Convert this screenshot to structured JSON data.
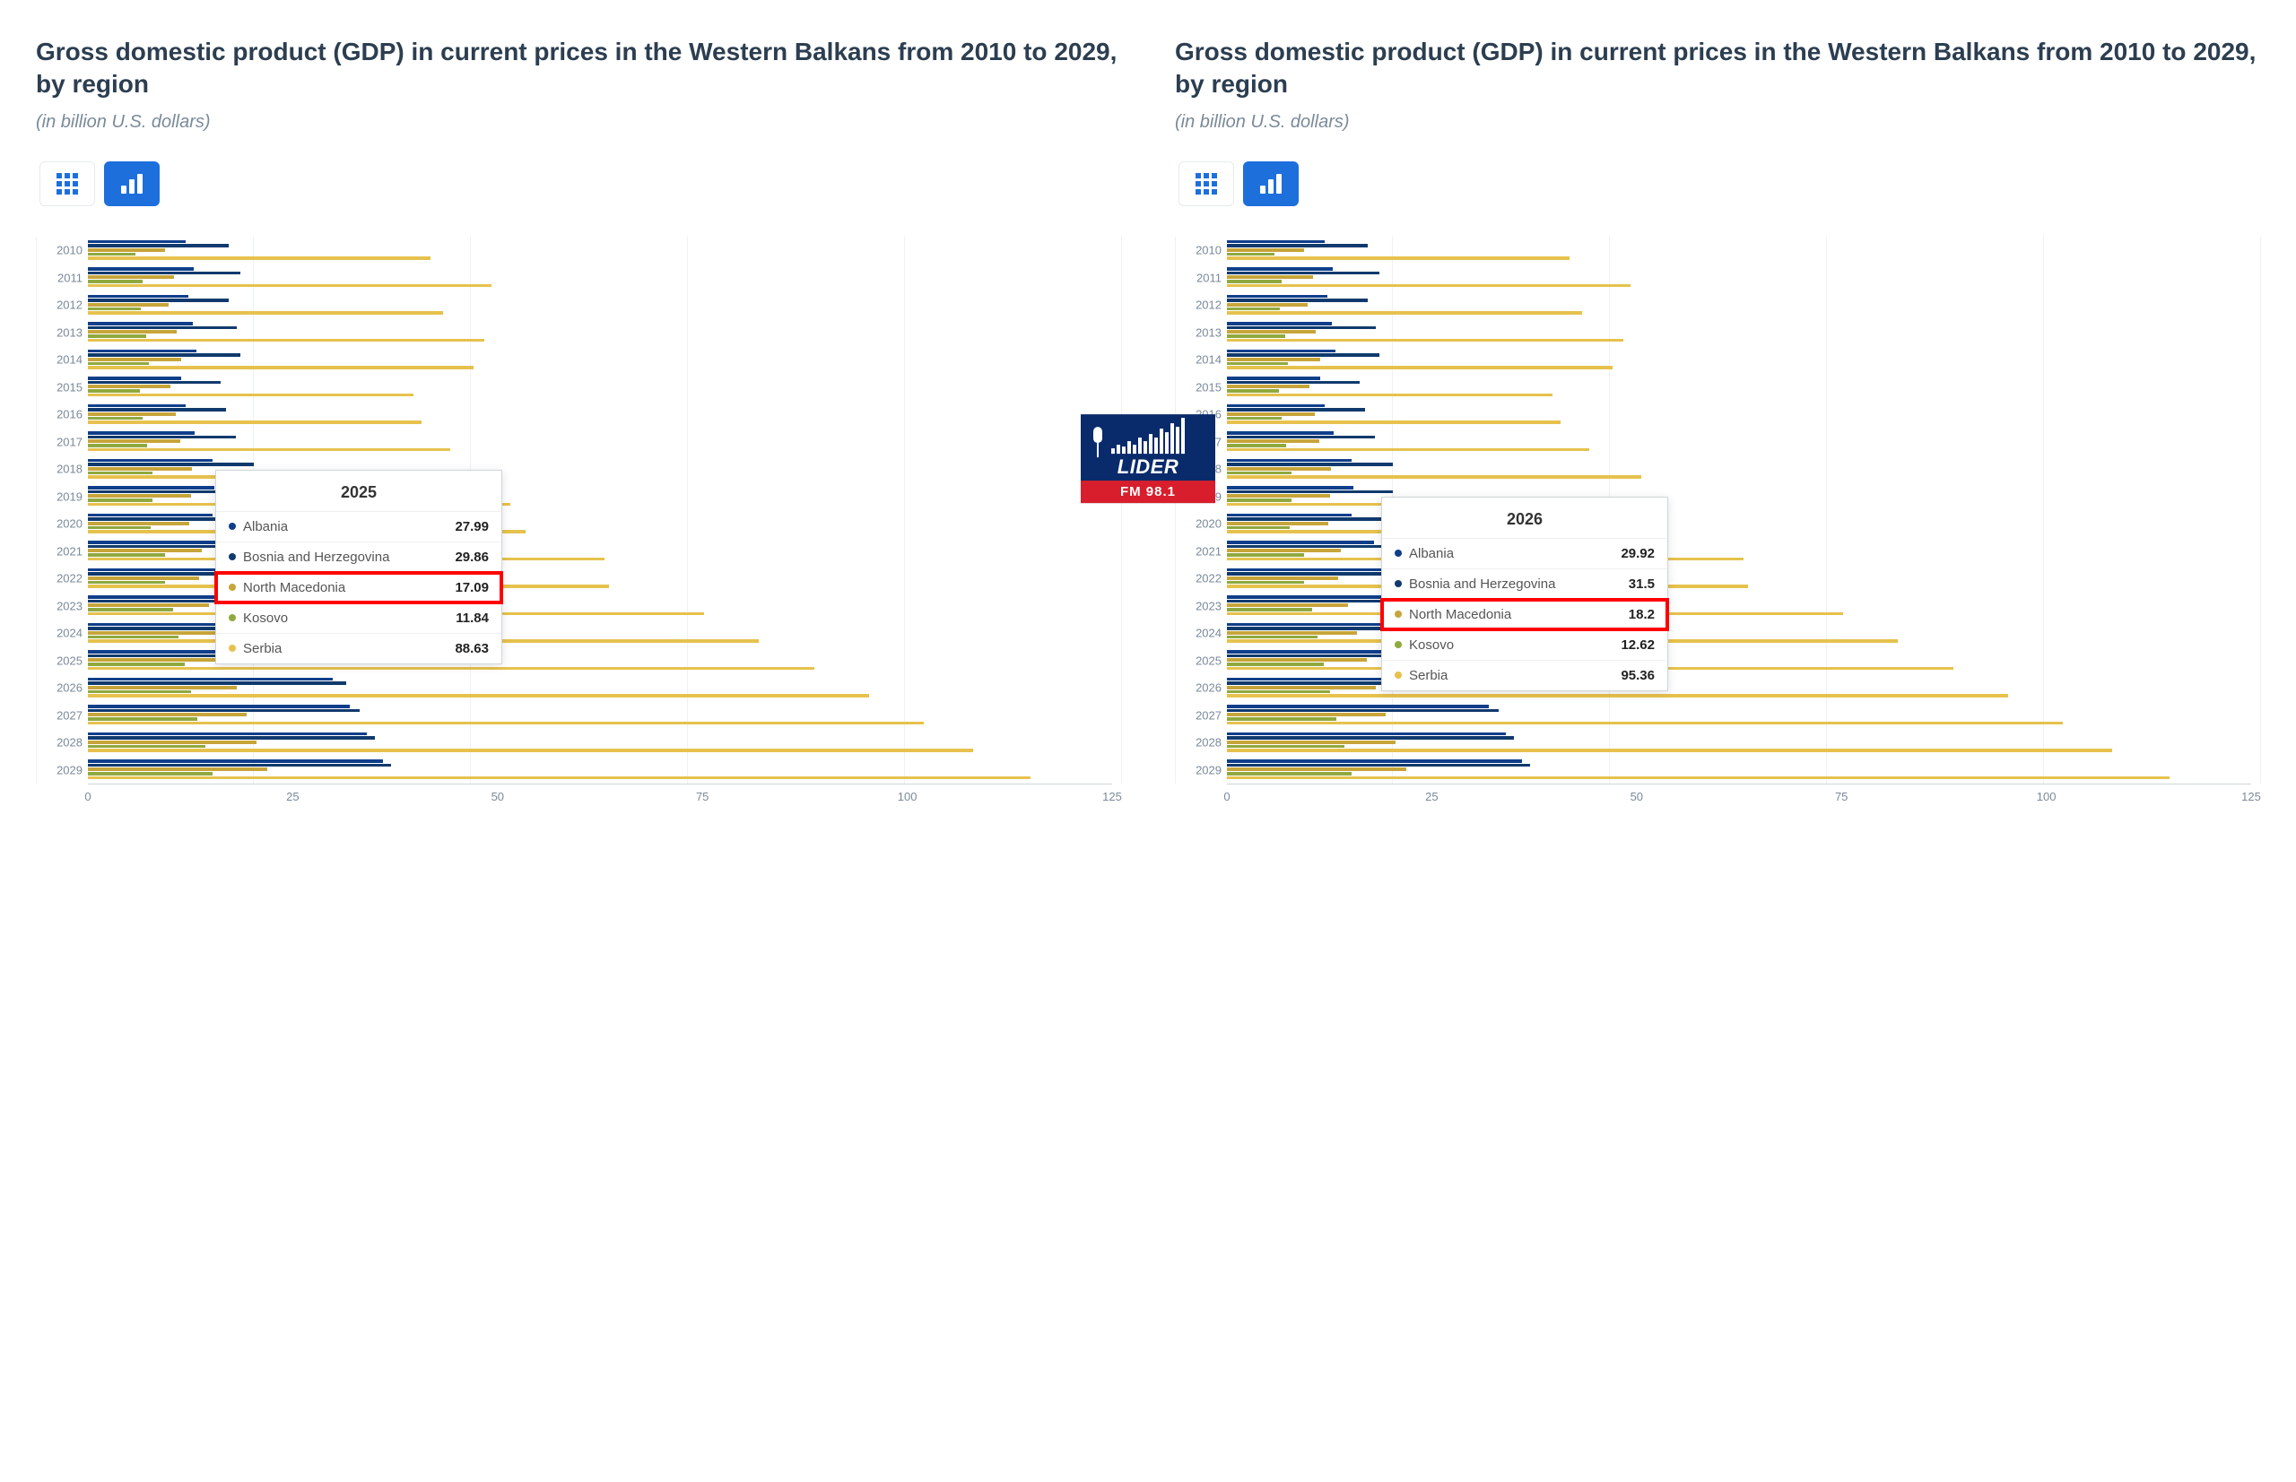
{
  "title": "Gross domestic product (GDP) in current prices in the Western Balkans from 2010 to 2029, by region",
  "subtitle": "(in billion U.S. dollars)",
  "logo": {
    "name": "LIDER",
    "freq": "FM 98.1",
    "bg": "#0a2b6b",
    "accent": "#d81e2c"
  },
  "colors": {
    "albania": "#0f3e8a",
    "bosnia": "#103a6e",
    "macedonia": "#c7a53a",
    "kosovo": "#8fa93f",
    "serbia": "#e6c24d",
    "title": "#2c3e50",
    "subtitle": "#7a8a99",
    "grid": "#eef1f4",
    "axis": "#d0d5da",
    "active_btn": "#1d6fdc",
    "highlight": "#ff0000"
  },
  "chart": {
    "type": "bar-horizontal-grouped",
    "xlim": [
      0,
      125
    ],
    "xticks": [
      0,
      25,
      50,
      75,
      100,
      125
    ],
    "bar_height": 3.6,
    "group_gap": 8,
    "categories": [
      "2010",
      "2011",
      "2012",
      "2013",
      "2014",
      "2015",
      "2016",
      "2017",
      "2018",
      "2019",
      "2020",
      "2021",
      "2022",
      "2023",
      "2024",
      "2025",
      "2026",
      "2027",
      "2028",
      "2029"
    ],
    "series_colors": [
      "#0f3e8a",
      "#103a6e",
      "#c7a53a",
      "#8fa93f",
      "#e6c24d"
    ],
    "series_labels": [
      "Albania",
      "Bosnia and Herzegovina",
      "North Macedonia",
      "Kosovo",
      "Serbia"
    ],
    "data": {
      "albania": [
        11.9,
        12.9,
        12.3,
        12.8,
        13.2,
        11.4,
        11.9,
        13.0,
        15.2,
        15.4,
        15.2,
        18.0,
        18.9,
        23.0,
        25.0,
        27.99,
        29.92,
        32.0,
        34.0,
        36.0
      ],
      "bosnia": [
        17.2,
        18.6,
        17.2,
        18.2,
        18.6,
        16.2,
        16.9,
        18.1,
        20.2,
        20.2,
        19.9,
        23.6,
        24.5,
        27.0,
        28.3,
        29.86,
        31.5,
        33.2,
        35.0,
        37.0
      ],
      "macedonia": [
        9.4,
        10.5,
        9.8,
        10.8,
        11.4,
        10.1,
        10.7,
        11.3,
        12.7,
        12.6,
        12.4,
        13.9,
        13.6,
        14.8,
        15.9,
        17.09,
        18.2,
        19.4,
        20.6,
        21.9
      ],
      "kosovo": [
        5.8,
        6.7,
        6.5,
        7.1,
        7.4,
        6.4,
        6.7,
        7.2,
        7.9,
        7.9,
        7.7,
        9.4,
        9.4,
        10.4,
        11.1,
        11.84,
        12.62,
        13.4,
        14.3,
        15.2
      ],
      "serbia": [
        41.8,
        49.3,
        43.3,
        48.4,
        47.1,
        39.7,
        40.7,
        44.2,
        50.6,
        51.5,
        53.4,
        63.1,
        63.6,
        75.2,
        81.9,
        88.63,
        95.36,
        102.0,
        108.0,
        115.0
      ]
    }
  },
  "tooltip_left": {
    "year": "2025",
    "rows": [
      {
        "label": "Albania",
        "value": "27.99",
        "color": "#0f3e8a"
      },
      {
        "label": "Bosnia and Herzegovina",
        "value": "29.86",
        "color": "#103a6e"
      },
      {
        "label": "North Macedonia",
        "value": "17.09",
        "color": "#c7a53a"
      },
      {
        "label": "Kosovo",
        "value": "11.84",
        "color": "#8fa93f"
      },
      {
        "label": "Serbia",
        "value": "88.63",
        "color": "#e6c24d"
      }
    ],
    "highlight_index": 2
  },
  "tooltip_right": {
    "year": "2026",
    "rows": [
      {
        "label": "Albania",
        "value": "29.92",
        "color": "#0f3e8a"
      },
      {
        "label": "Bosnia and Herzegovina",
        "value": "31.5",
        "color": "#103a6e"
      },
      {
        "label": "North Macedonia",
        "value": "18.2",
        "color": "#c7a53a"
      },
      {
        "label": "Kosovo",
        "value": "12.62",
        "color": "#8fa93f"
      },
      {
        "label": "Serbia",
        "value": "95.36",
        "color": "#e6c24d"
      }
    ],
    "highlight_index": 2
  }
}
